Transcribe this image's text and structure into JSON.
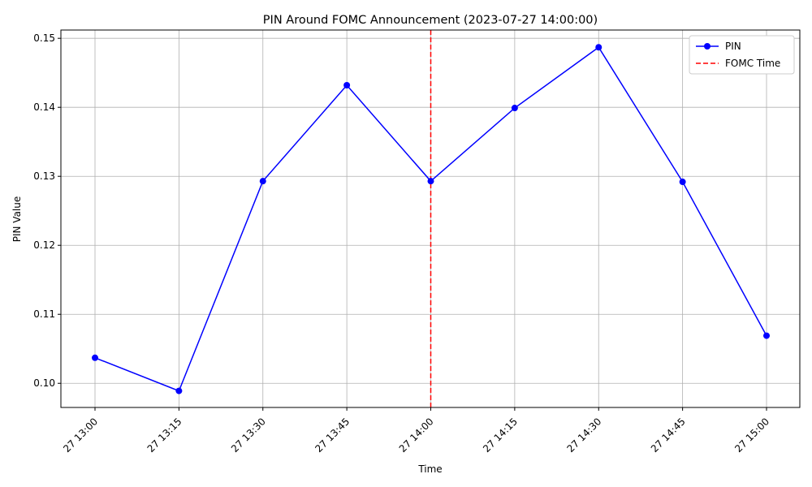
{
  "chart_data": {
    "type": "line",
    "title": "PIN Around FOMC Announcement (2023-07-27 14:00:00)",
    "xlabel": "Time",
    "ylabel": "PIN Value",
    "categories": [
      "27 13:00",
      "27 13:15",
      "27 13:30",
      "27 13:45",
      "27 14:00",
      "27 14:15",
      "27 14:30",
      "27 14:45",
      "27 15:00"
    ],
    "yticks": [
      "0.10",
      "0.11",
      "0.12",
      "0.13",
      "0.14",
      "0.15"
    ],
    "ylim": [
      0.0965,
      0.1512
    ],
    "grid": true,
    "legend_position": "top-right",
    "series": [
      {
        "name": "PIN",
        "color": "#0000ff",
        "marker": "circle",
        "values": [
          0.1037,
          0.0989,
          0.1293,
          0.1432,
          0.1293,
          0.1399,
          0.1487,
          0.1292,
          0.1069
        ]
      }
    ],
    "vline": {
      "name": "FOMC Time",
      "at_category": "27 14:00",
      "color": "#ff0000",
      "style": "dashed"
    }
  }
}
